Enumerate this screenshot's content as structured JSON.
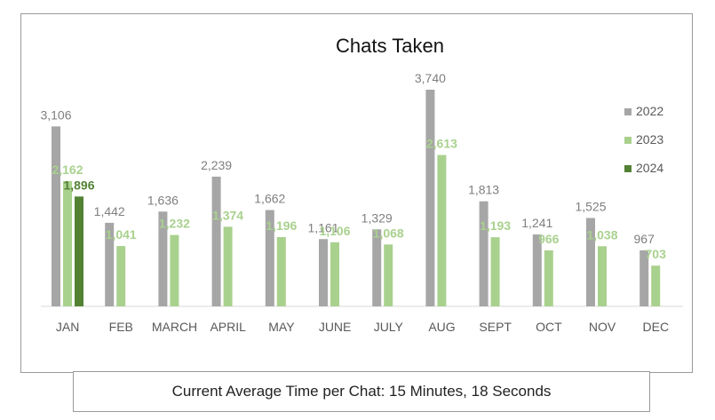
{
  "chart_data": {
    "type": "bar",
    "title": "Chats Taken",
    "xlabel": "",
    "ylabel": "",
    "categories": [
      "JAN",
      "FEB",
      "MARCH",
      "APRIL",
      "MAY",
      "JUNE",
      "JULY",
      "AUG",
      "SEPT",
      "OCT",
      "NOV",
      "DEC"
    ],
    "series": [
      {
        "name": "2022",
        "color": "#a6a6a6",
        "label_color": "#7f7f7f",
        "values": [
          3106,
          1442,
          1636,
          2239,
          1662,
          1161,
          1329,
          3740,
          1813,
          1241,
          1525,
          967
        ],
        "labels": [
          "3,106",
          "1,442",
          "1,636",
          "2,239",
          "1,662",
          "1,161",
          "1,329",
          "3,740",
          "1,813",
          "1,241",
          "1,525",
          "967"
        ]
      },
      {
        "name": "2023",
        "color": "#a9d18e",
        "label_color": "#a9d18e",
        "values": [
          2162,
          1041,
          1232,
          1374,
          1196,
          1106,
          1068,
          2613,
          1193,
          966,
          1038,
          703
        ],
        "labels": [
          "2,162",
          "1,041",
          "1,232",
          "1,374",
          "1,196",
          "1,106",
          "1,068",
          "2,613",
          "1,193",
          "966",
          "1,038",
          "703"
        ]
      },
      {
        "name": "2024",
        "color": "#548235",
        "label_color": "#548235",
        "values": [
          1896,
          null,
          null,
          null,
          null,
          null,
          null,
          null,
          null,
          null,
          null,
          null
        ],
        "labels": [
          "1,896",
          "",
          "",
          "",
          "",
          "",
          "",
          "",
          "",
          "",
          "",
          ""
        ]
      }
    ],
    "ylim": [
      0,
      3740
    ],
    "grid": false,
    "legend_position": "right"
  },
  "footer": {
    "text": "Current Average Time per Chat: 15 Minutes, 18 Seconds"
  }
}
